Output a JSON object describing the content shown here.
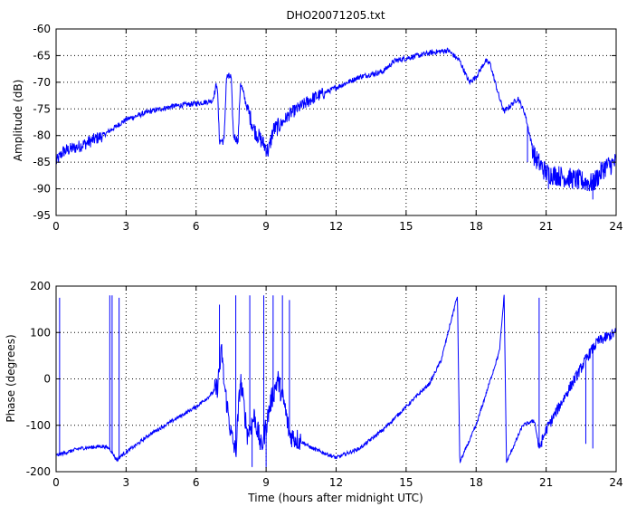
{
  "figure": {
    "title": "DHO20071205.txt",
    "line_color": "#0000ff"
  },
  "chart_data": [
    {
      "type": "line",
      "title": "DHO20071205.txt",
      "xlabel": "",
      "ylabel": "Amplitude (dB)",
      "xlim": [
        0,
        24
      ],
      "ylim": [
        -95,
        -60
      ],
      "xticks": [
        0,
        3,
        6,
        9,
        12,
        15,
        18,
        21,
        24
      ],
      "yticks": [
        -95,
        -90,
        -85,
        -80,
        -75,
        -70,
        -65,
        -60
      ],
      "grid": "dotted",
      "noise": [
        {
          "from": 0,
          "to": 2,
          "amp": 1.2
        },
        {
          "from": 2,
          "to": 6.8,
          "amp": 0.5
        },
        {
          "from": 6.8,
          "to": 8.2,
          "amp": 0.8
        },
        {
          "from": 8.2,
          "to": 9.6,
          "amp": 1.6
        },
        {
          "from": 9.6,
          "to": 11.5,
          "amp": 1.2
        },
        {
          "from": 11.5,
          "to": 20.4,
          "amp": 0.5
        },
        {
          "from": 20.4,
          "to": 24,
          "amp": 2.0
        }
      ],
      "series": [
        {
          "color": "#0000ff",
          "points": [
            [
              0,
              -85
            ],
            [
              0.3,
              -83
            ],
            [
              1,
              -82
            ],
            [
              2,
              -80
            ],
            [
              3,
              -77
            ],
            [
              4,
              -75.5
            ],
            [
              5,
              -74.5
            ],
            [
              6,
              -74
            ],
            [
              6.7,
              -73.5
            ],
            [
              6.9,
              -70
            ],
            [
              7.0,
              -81
            ],
            [
              7.2,
              -81
            ],
            [
              7.3,
              -69
            ],
            [
              7.5,
              -69
            ],
            [
              7.6,
              -80
            ],
            [
              7.8,
              -81
            ],
            [
              7.9,
              -70
            ],
            [
              8.2,
              -75
            ],
            [
              8.5,
              -79
            ],
            [
              8.8,
              -81
            ],
            [
              9.1,
              -83
            ],
            [
              9.3,
              -79
            ],
            [
              9.6,
              -78
            ],
            [
              10,
              -76
            ],
            [
              11,
              -73
            ],
            [
              12,
              -71
            ],
            [
              13,
              -69
            ],
            [
              14,
              -68
            ],
            [
              14.5,
              -66
            ],
            [
              15,
              -65.5
            ],
            [
              16,
              -64.5
            ],
            [
              16.8,
              -64
            ],
            [
              17.3,
              -66
            ],
            [
              17.7,
              -70
            ],
            [
              18.0,
              -69
            ],
            [
              18.4,
              -66
            ],
            [
              18.6,
              -66.5
            ],
            [
              19.0,
              -73
            ],
            [
              19.2,
              -75.5
            ],
            [
              19.8,
              -73
            ],
            [
              20.1,
              -76
            ],
            [
              20.5,
              -84
            ],
            [
              21,
              -87
            ],
            [
              22,
              -88
            ],
            [
              23,
              -89
            ],
            [
              23.5,
              -86
            ],
            [
              24,
              -85
            ]
          ],
          "spikes": [
            [
              23.0,
              -92
            ],
            [
              20.2,
              -85
            ],
            [
              21.1,
              -90
            ],
            [
              22.4,
              -90
            ]
          ]
        }
      ]
    },
    {
      "type": "line",
      "title": "",
      "xlabel": "Time (hours after midnight UTC)",
      "ylabel": "Phase (degrees)",
      "xlim": [
        0,
        24
      ],
      "ylim": [
        -200,
        200
      ],
      "xticks": [
        0,
        3,
        6,
        9,
        12,
        15,
        18,
        21,
        24
      ],
      "yticks": [
        -200,
        -100,
        0,
        100,
        200
      ],
      "grid": "dotted",
      "noise": [
        {
          "from": 0,
          "to": 2.5,
          "amp": 4
        },
        {
          "from": 2.5,
          "to": 6.8,
          "amp": 4
        },
        {
          "from": 6.8,
          "to": 10.5,
          "amp": 25
        },
        {
          "from": 10.5,
          "to": 20.6,
          "amp": 4
        },
        {
          "from": 20.6,
          "to": 24,
          "amp": 12
        }
      ],
      "series": [
        {
          "color": "#0000ff",
          "points": [
            [
              0,
              -165
            ],
            [
              1,
              -150
            ],
            [
              2,
              -145
            ],
            [
              2.3,
              -150
            ],
            [
              2.6,
              -175
            ],
            [
              2.8,
              -165
            ],
            [
              3.5,
              -140
            ],
            [
              4,
              -120
            ],
            [
              5,
              -90
            ],
            [
              6,
              -60
            ],
            [
              6.5,
              -40
            ],
            [
              6.9,
              -20
            ],
            [
              7.0,
              20
            ],
            [
              7.1,
              60
            ],
            [
              7.2,
              -10
            ],
            [
              7.5,
              -120
            ],
            [
              7.7,
              -160
            ],
            [
              7.9,
              0
            ],
            [
              8.2,
              -120
            ],
            [
              8.5,
              -80
            ],
            [
              8.8,
              -150
            ],
            [
              9.2,
              -50
            ],
            [
              9.5,
              0
            ],
            [
              9.8,
              -60
            ],
            [
              10,
              -120
            ],
            [
              11,
              -150
            ],
            [
              12,
              -170
            ],
            [
              13,
              -150
            ],
            [
              14,
              -110
            ],
            [
              15,
              -60
            ],
            [
              16,
              -10
            ],
            [
              16.5,
              40
            ],
            [
              17.2,
              180
            ],
            [
              17.3,
              -180
            ],
            [
              18,
              -100
            ],
            [
              19,
              60
            ],
            [
              19.2,
              180
            ],
            [
              19.3,
              -180
            ],
            [
              20,
              -100
            ],
            [
              20.5,
              -90
            ],
            [
              20.7,
              -150
            ],
            [
              21,
              -110
            ],
            [
              22,
              -20
            ],
            [
              22.8,
              50
            ],
            [
              23.2,
              80
            ],
            [
              24,
              100
            ]
          ],
          "spikes": [
            [
              0.15,
              175
            ],
            [
              2.3,
              180
            ],
            [
              2.4,
              180
            ],
            [
              2.7,
              175
            ],
            [
              7.0,
              160
            ],
            [
              7.7,
              180
            ],
            [
              8.3,
              180
            ],
            [
              8.4,
              -190
            ],
            [
              8.9,
              180
            ],
            [
              9.0,
              -190
            ],
            [
              9.3,
              180
            ],
            [
              9.7,
              180
            ],
            [
              10.0,
              170
            ],
            [
              20.7,
              175
            ],
            [
              23.0,
              -150
            ],
            [
              22.7,
              -140
            ]
          ]
        }
      ]
    }
  ]
}
